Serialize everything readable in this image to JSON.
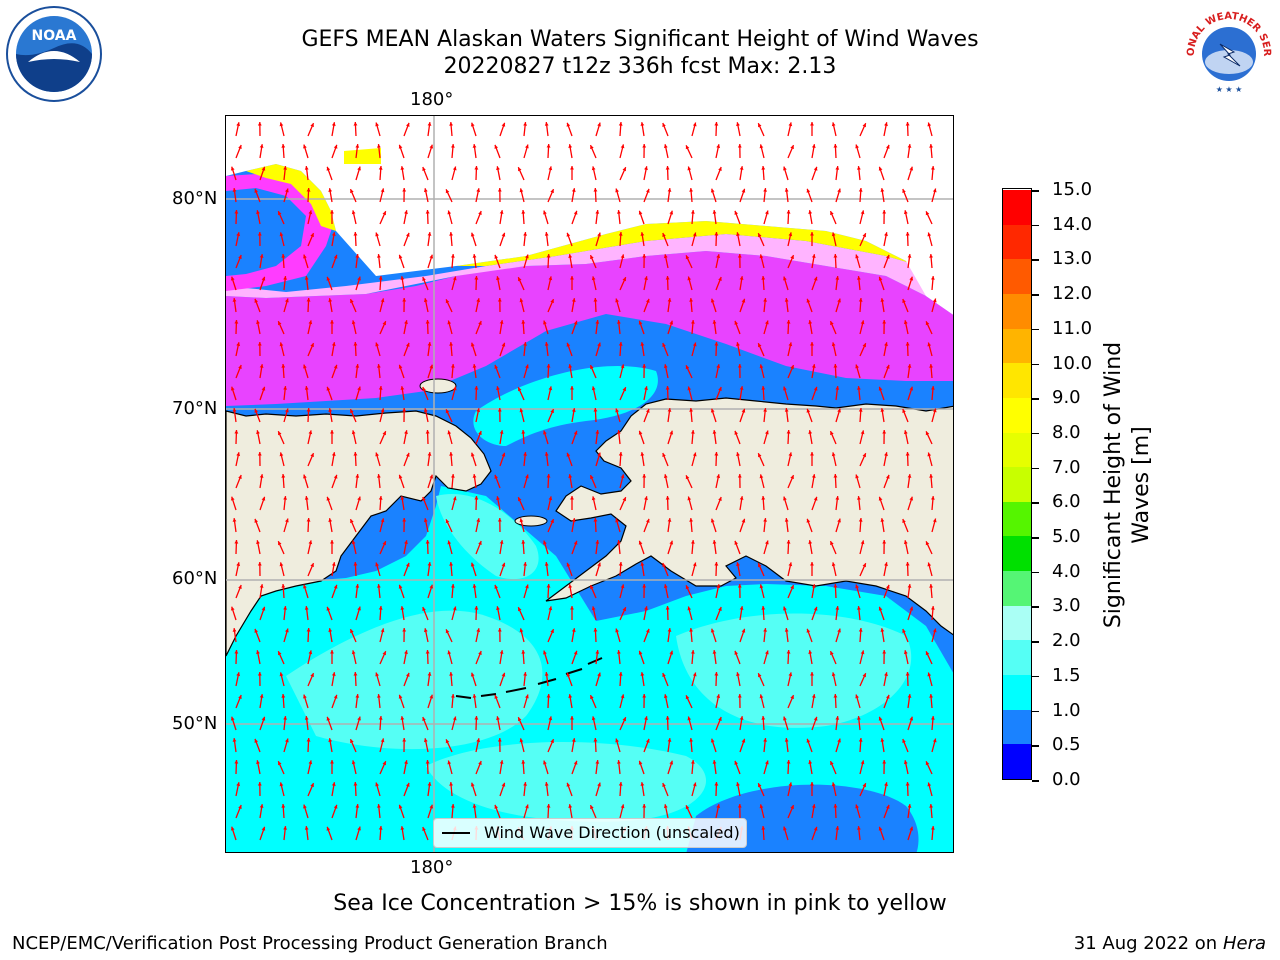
{
  "title": {
    "line1": "GEFS MEAN Alaskan Waters Significant Height of Wind Waves",
    "line2": "20220827 t12z 336h fcst   Max: 2.13"
  },
  "map": {
    "lon_label_top": "180°",
    "lon_label_bottom": "180°",
    "lat_labels": [
      "80°N",
      "70°N",
      "60°N",
      "50°N"
    ]
  },
  "colorbar": {
    "label_line1": "Significant Height of Wind",
    "label_line2": "Waves [m]",
    "ticks": [
      "15.0",
      "14.0",
      "13.0",
      "12.0",
      "11.0",
      "10.0",
      "9.0",
      "8.0",
      "7.0",
      "6.0",
      "5.0",
      "4.0",
      "3.0",
      "2.0",
      "1.5",
      "1.0",
      "0.5",
      "0.0"
    ],
    "colors_bottom_to_top": [
      "#0000ff",
      "#1a82ff",
      "#00ffff",
      "#55fff5",
      "#aafff5",
      "#55f575",
      "#00e000",
      "#55f500",
      "#c8ff00",
      "#e6ff00",
      "#ffff00",
      "#ffe600",
      "#ffb400",
      "#ff8c00",
      "#ff5a00",
      "#ff2800",
      "#ff0000"
    ]
  },
  "legend": {
    "label": "Wind Wave Direction (unscaled)"
  },
  "caption": "Sea Ice Concentration > 15% is shown in pink to yellow",
  "footer": {
    "left": "NCEP/EMC/Verification Post Processing Product Generation Branch",
    "right_date": "31 Aug 2022 on",
    "right_machine": "Hera"
  },
  "logos": {
    "noaa_text": "NOAA",
    "nws_text": "NATIONAL WEATHER SERVICE"
  },
  "colors": {
    "land": "#efedde",
    "arrow": "#ff0000",
    "gridline": "#b0b0b0"
  }
}
